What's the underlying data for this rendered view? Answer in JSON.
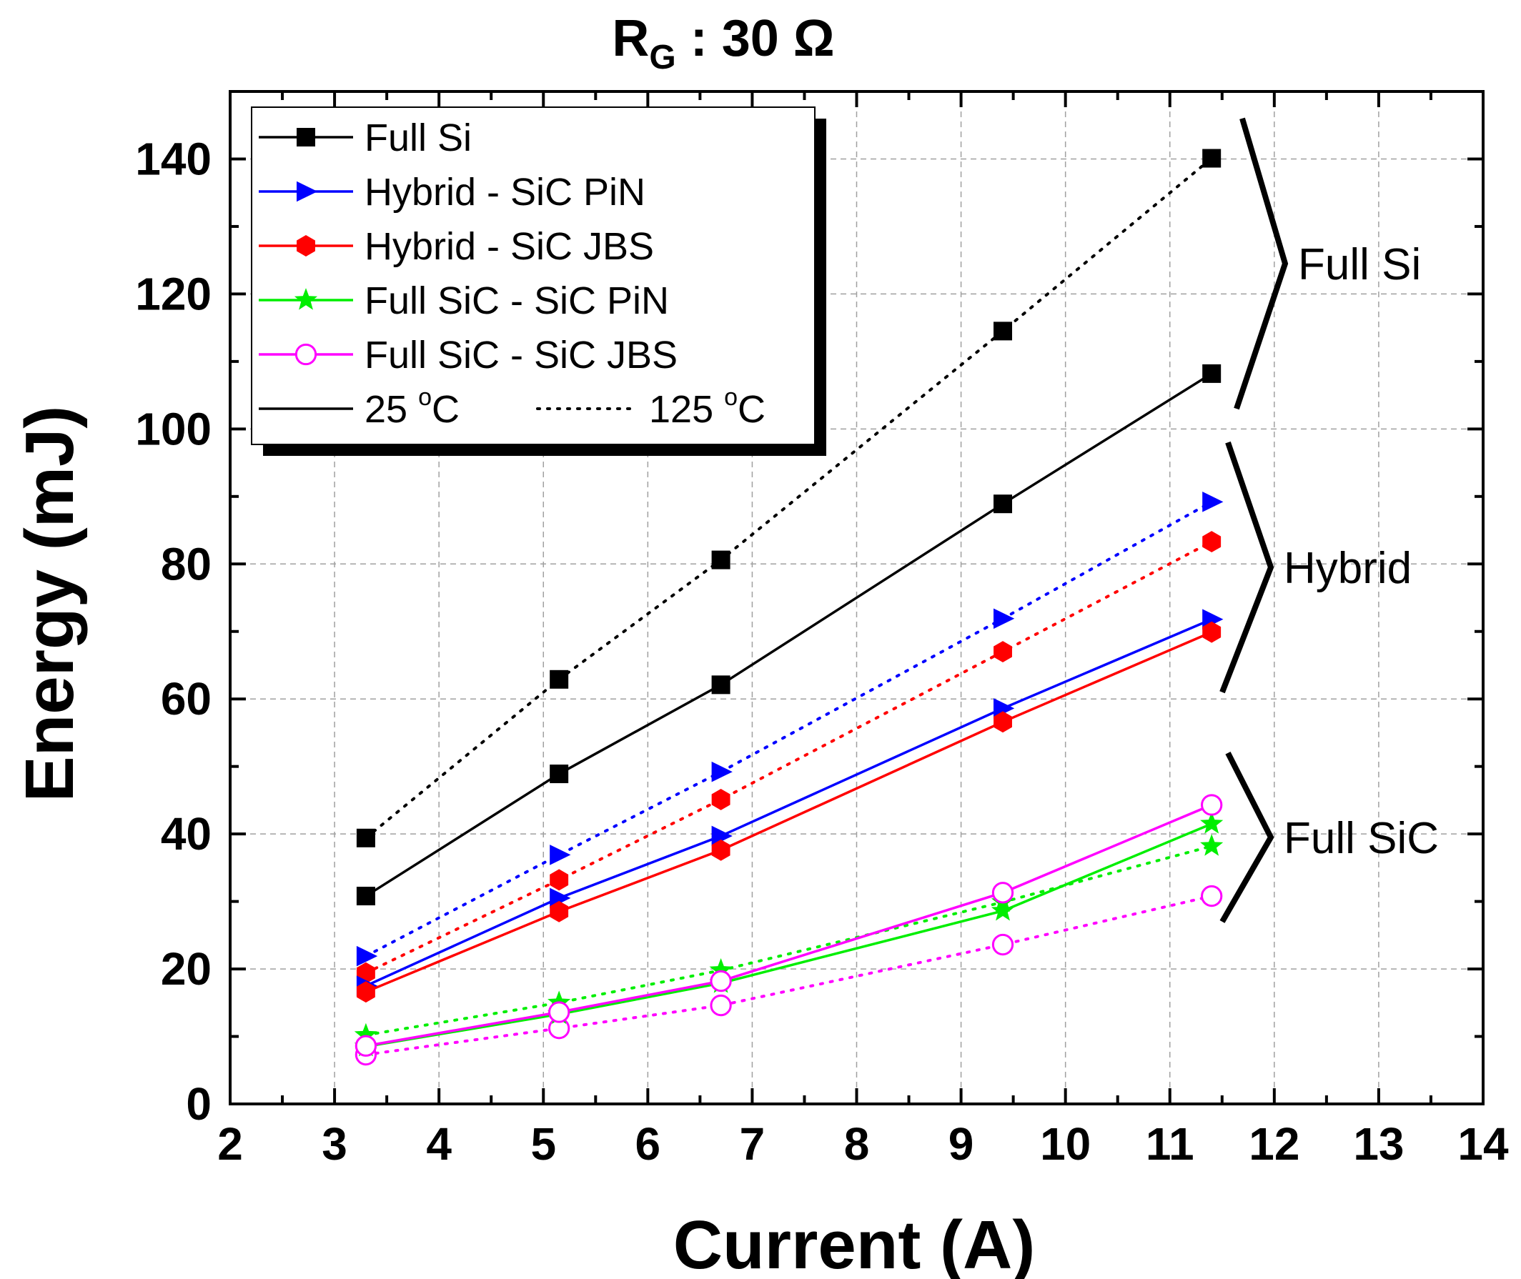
{
  "chart_data": {
    "type": "line",
    "title_main": "R",
    "title_sub": "G",
    "title_rest": " : 30 Ω",
    "xlabel": "Current (A)",
    "ylabel": "Energy (mJ)",
    "xlim": [
      2,
      14
    ],
    "ylim": [
      0,
      150
    ],
    "xticks": [
      2,
      3,
      4,
      5,
      6,
      7,
      8,
      9,
      10,
      11,
      12,
      13,
      14
    ],
    "yticks": [
      0,
      20,
      40,
      60,
      80,
      100,
      120,
      140
    ],
    "grid": true,
    "x": [
      3.3,
      5.15,
      6.7,
      9.4,
      11.4
    ],
    "series": [
      {
        "name": "Full Si",
        "temp": "25",
        "color": "#000000",
        "marker": "square",
        "values": [
          30.8,
          48.9,
          62.1,
          88.9,
          108.2
        ]
      },
      {
        "name": "Full Si",
        "temp": "125",
        "color": "#000000",
        "marker": "square",
        "values": [
          39.4,
          62.9,
          80.6,
          114.5,
          140.1
        ]
      },
      {
        "name": "Hybrid - SiC PiN",
        "temp": "25",
        "color": "#0000ff",
        "marker": "triangle-right",
        "values": [
          17.5,
          30.5,
          39.7,
          58.6,
          71.8
        ]
      },
      {
        "name": "Hybrid - SiC PiN",
        "temp": "125",
        "color": "#0000ff",
        "marker": "triangle-right",
        "values": [
          21.9,
          36.9,
          49.2,
          71.9,
          89.2
        ]
      },
      {
        "name": "Hybrid - SiC JBS",
        "temp": "25",
        "color": "#ff0000",
        "marker": "hexagon",
        "values": [
          16.6,
          28.5,
          37.6,
          56.6,
          69.9
        ]
      },
      {
        "name": "Hybrid - SiC JBS",
        "temp": "125",
        "color": "#ff0000",
        "marker": "hexagon",
        "values": [
          19.4,
          33.2,
          45.1,
          67.0,
          83.3
        ]
      },
      {
        "name": "Full SiC - SiC PiN",
        "temp": "25",
        "color": "#00ee00",
        "marker": "star",
        "values": [
          8.5,
          13.3,
          17.9,
          28.6,
          41.5
        ]
      },
      {
        "name": "Full SiC - SiC PiN",
        "temp": "125",
        "color": "#00ee00",
        "marker": "star",
        "values": [
          10.2,
          15.0,
          19.8,
          29.9,
          38.2
        ]
      },
      {
        "name": "Full SiC - SiC JBS",
        "temp": "25",
        "color": "#ff00ff",
        "marker": "circle-open",
        "values": [
          8.6,
          13.6,
          18.2,
          31.3,
          44.3
        ]
      },
      {
        "name": "Full SiC - SiC JBS",
        "temp": "125",
        "color": "#ff00ff",
        "marker": "circle-open",
        "values": [
          7.3,
          11.2,
          14.6,
          23.6,
          30.8
        ]
      }
    ],
    "legend": {
      "position": "top-left",
      "entries": [
        "Full Si",
        "Hybrid - SiC PiN",
        "Hybrid - SiC JBS",
        "Full SiC - SiC PiN",
        "Full SiC - SiC JBS"
      ],
      "line_25": "25 ",
      "line_125": "125 ",
      "deg_o": "o",
      "deg_c": "C"
    },
    "annotations": {
      "full_si": "Full Si",
      "hybrid": "Hybrid",
      "full_sic": "Full SiC"
    },
    "annotation_ranges": [
      [
        103,
        146
      ],
      [
        61,
        98
      ],
      [
        27,
        52
      ]
    ]
  }
}
